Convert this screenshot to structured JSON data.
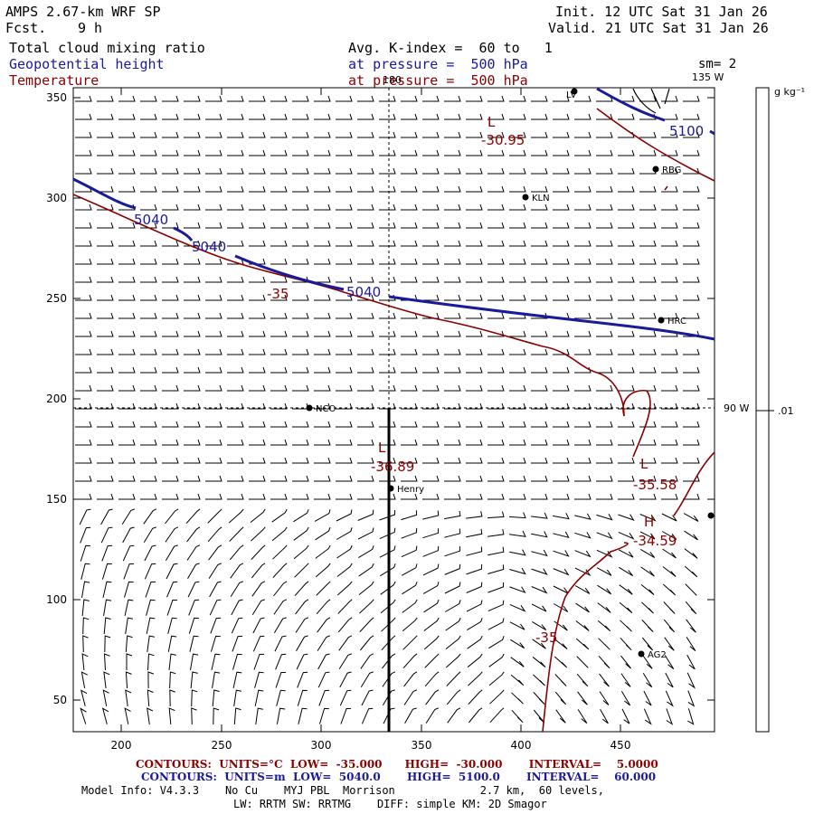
{
  "header": {
    "model": "AMPS 2.67-km WRF SP",
    "fcst_label": "Fcst.",
    "fcst_value": "9 h",
    "init": "Init. 12 UTC Sat 31 Jan 26",
    "valid": "Valid. 21 UTC Sat 31 Jan 26",
    "field1": "Total cloud mixing ratio",
    "field2": "Geopotential height",
    "field3": "Temperature",
    "avg": "Avg. K-index =  60 to   1",
    "pressure2": "at pressure =  500 hPa",
    "pressure3": "at pressure =  500 hPa",
    "sm": "sm= 2"
  },
  "axes": {
    "x_ticks": [
      "200",
      "250",
      "300",
      "350",
      "400",
      "450"
    ],
    "y_ticks": [
      "350",
      "300",
      "250",
      "200",
      "150",
      "100",
      "50"
    ],
    "lon_label_top": "180",
    "lon_label_135": "135 W",
    "lon_label_90": "90 W"
  },
  "colorbar": {
    "unit": "g kg⁻¹",
    "tick": ".01"
  },
  "stations": [
    {
      "name": "KLN"
    },
    {
      "name": "RBG"
    },
    {
      "name": "HRC"
    },
    {
      "name": "NCO"
    },
    {
      "name": "Henry"
    },
    {
      "name": "AG2"
    },
    {
      "name": "LV"
    }
  ],
  "contour_labels": {
    "height": [
      "5040",
      "5040",
      "5040",
      "5100"
    ],
    "temp": [
      "-35",
      "-35"
    ],
    "extrema": [
      {
        "letter": "L",
        "value": "-30.95"
      },
      {
        "letter": "L",
        "value": "-36.89"
      },
      {
        "letter": "L",
        "value": "-35.58"
      },
      {
        "letter": "H",
        "value": "-34.59"
      }
    ]
  },
  "footer": {
    "red_line": "CONTOURS:  UNITS=°C  LOW=  -35.000      HIGH=  -30.000       INTERVAL=    5.0000",
    "blue_line": "CONTOURS:  UNITS=m  LOW=  5040.0       HIGH=  5100.0       INTERVAL=    60.000",
    "model_info": "Model Info: V4.3.3    No Cu    MYJ PBL  Morrison             2.7 km,  60 levels,",
    "physics": "LW: RRTM SW: RRTMG    DIFF: simple KM: 2D Smagor"
  },
  "colors": {
    "height": "#1a1a9a",
    "temp": "#8b0000"
  }
}
